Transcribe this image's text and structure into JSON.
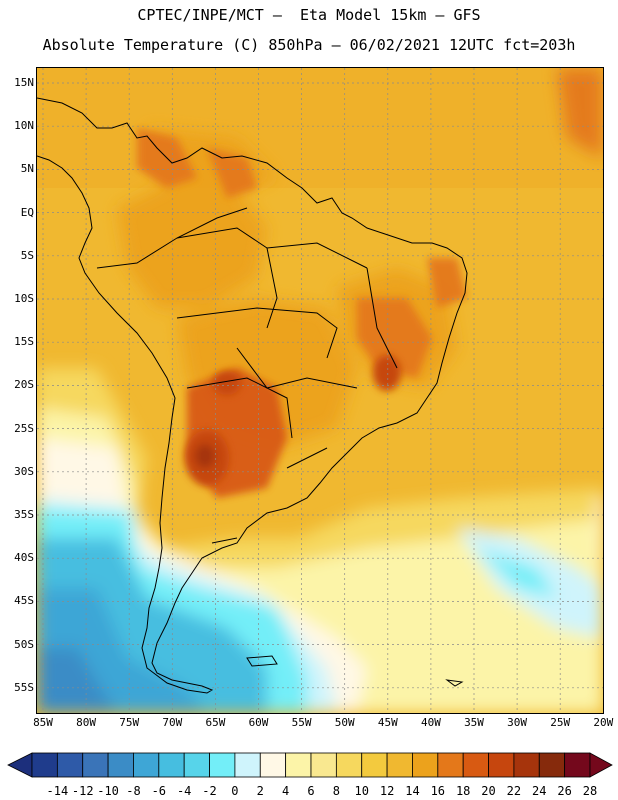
{
  "header": {
    "line1": "CPTEC/INPE/MCT –  Eta Model 15km – GFS",
    "line2": "Absolute Temperature (C) 850hPa – 06/02/2021 12UTC fct=203h"
  },
  "axes": {
    "lat_labels": [
      "15N",
      "10N",
      "5N",
      "EQ",
      "5S",
      "10S",
      "15S",
      "20S",
      "25S",
      "30S",
      "35S",
      "40S",
      "45S",
      "50S",
      "55S"
    ],
    "lon_labels": [
      "85W",
      "80W",
      "75W",
      "70W",
      "65W",
      "60W",
      "55W",
      "50W",
      "45W",
      "40W",
      "35W",
      "30W",
      "25W",
      "20W"
    ]
  },
  "colorbar": {
    "labels": [
      "-14",
      "-12",
      "-10",
      "-8",
      "-6",
      "-4",
      "-2",
      "0",
      "2",
      "4",
      "6",
      "8",
      "10",
      "12",
      "14",
      "16",
      "18",
      "20",
      "22",
      "24",
      "26",
      "28"
    ],
    "colors": [
      "#1f3c8c",
      "#2e5aa8",
      "#3a74b8",
      "#3b8cc6",
      "#3ea6d6",
      "#46bee0",
      "#57d4ea",
      "#73eef8",
      "#cff4fc",
      "#fff8e6",
      "#fcf4a8",
      "#f9e890",
      "#f6d85e",
      "#f3ca3e",
      "#f0b830",
      "#eca21c",
      "#e4781a",
      "#d85a12",
      "#c6460e",
      "#a6340c",
      "#862a0c",
      "#74081c"
    ],
    "underflow_color": "#1c2f7c",
    "overflow_color": "#74081c"
  }
}
